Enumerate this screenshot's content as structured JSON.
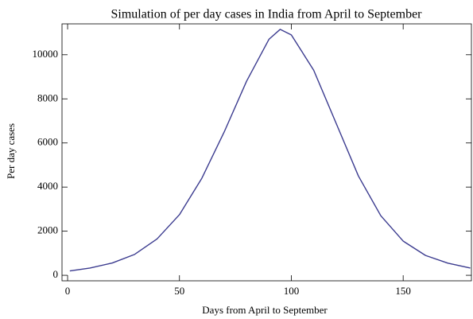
{
  "chart_data": {
    "type": "line",
    "title": "Simulation of  per day cases in India from April to September",
    "x_label": "Days from April  to September",
    "y_label": "Per day cases",
    "x": [
      1,
      10,
      20,
      30,
      40,
      50,
      60,
      70,
      80,
      90,
      95,
      100,
      110,
      120,
      130,
      140,
      150,
      160,
      170,
      180
    ],
    "series": [
      {
        "name": "Per day cases",
        "color": "#3b3b8f",
        "values": [
          200,
          330,
          560,
          950,
          1650,
          2750,
          4400,
          6500,
          8800,
          10700,
          11150,
          10900,
          9300,
          6900,
          4500,
          2700,
          1550,
          900,
          550,
          330
        ]
      }
    ],
    "xlim": [
      -2.5,
      180.5
    ],
    "xticks": [
      0,
      50,
      100,
      150
    ],
    "ylim": [
      -250,
      11400
    ],
    "yticks": [
      0,
      2000,
      4000,
      6000,
      8000,
      10000
    ],
    "grid": false
  }
}
